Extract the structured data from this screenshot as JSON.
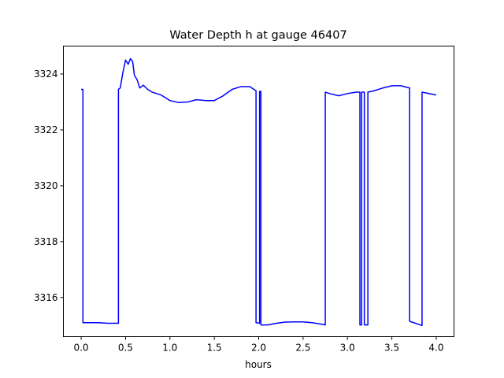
{
  "chart_data": {
    "type": "line",
    "title": "Water Depth h at gauge 46407",
    "xlabel": "hours",
    "ylabel": "",
    "xlim": [
      -0.2,
      4.2
    ],
    "ylim": [
      3314.6,
      3325.0
    ],
    "xticks": [
      0.0,
      0.5,
      1.0,
      1.5,
      2.0,
      2.5,
      3.0,
      3.5,
      4.0
    ],
    "xtick_labels": [
      "0.0",
      "0.5",
      "1.0",
      "1.5",
      "2.0",
      "2.5",
      "3.0",
      "3.5",
      "4.0"
    ],
    "yticks": [
      3316,
      3318,
      3320,
      3322,
      3324
    ],
    "ytick_labels": [
      "3316",
      "3318",
      "3320",
      "3322",
      "3324"
    ],
    "grid": false,
    "series": [
      {
        "color": "#0000ff",
        "x": [
          0.0,
          0.02,
          0.02,
          0.2,
          0.3,
          0.42,
          0.42,
          0.44,
          0.47,
          0.5,
          0.53,
          0.555,
          0.58,
          0.6,
          0.63,
          0.66,
          0.7,
          0.75,
          0.8,
          0.9,
          1.0,
          1.1,
          1.2,
          1.3,
          1.4,
          1.5,
          1.6,
          1.7,
          1.8,
          1.9,
          1.97,
          1.97,
          2.01,
          2.01,
          2.025,
          2.025,
          2.04,
          2.04,
          2.1,
          2.2,
          2.3,
          2.4,
          2.5,
          2.6,
          2.7,
          2.75,
          2.75,
          2.8,
          2.9,
          3.0,
          3.1,
          3.14,
          3.14,
          3.16,
          3.16,
          3.19,
          3.19,
          3.23,
          3.23,
          3.3,
          3.4,
          3.5,
          3.6,
          3.7,
          3.7,
          3.84,
          3.84,
          4.0
        ],
        "y": [
          3323.45,
          3323.45,
          3315.1,
          3315.1,
          3315.08,
          3315.08,
          3323.45,
          3323.5,
          3324.05,
          3324.5,
          3324.35,
          3324.55,
          3324.45,
          3323.95,
          3323.8,
          3323.5,
          3323.6,
          3323.45,
          3323.35,
          3323.25,
          3323.05,
          3322.98,
          3323.0,
          3323.08,
          3323.05,
          3323.05,
          3323.22,
          3323.45,
          3323.55,
          3323.55,
          3323.4,
          3315.1,
          3315.08,
          3323.38,
          3323.38,
          3315.02,
          3315.02,
          3315.02,
          3315.02,
          3315.08,
          3315.12,
          3315.13,
          3315.13,
          3315.1,
          3315.05,
          3315.02,
          3323.35,
          3323.3,
          3323.22,
          3323.3,
          3323.35,
          3323.35,
          3315.02,
          3315.02,
          3323.35,
          3323.35,
          3315.02,
          3315.02,
          3323.35,
          3323.4,
          3323.5,
          3323.58,
          3323.58,
          3323.5,
          3315.15,
          3315.0,
          3323.35,
          3323.25
        ]
      }
    ]
  }
}
